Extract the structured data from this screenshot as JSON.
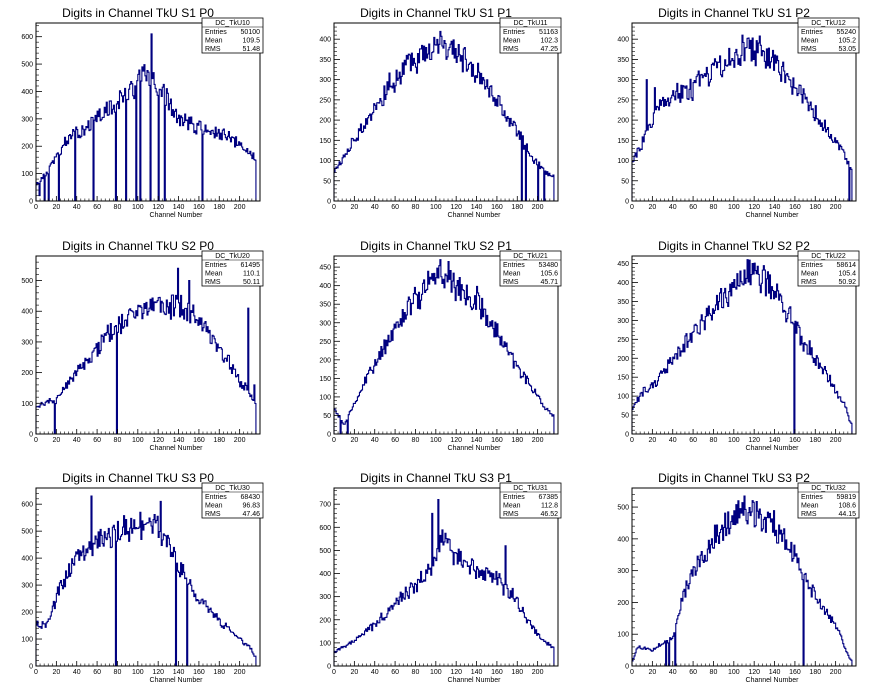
{
  "chart_data": [
    {
      "type": "histogram",
      "title": "Digits in Channel TkU S1 P0",
      "xlabel": "Channel Number",
      "xlim": [
        0,
        220
      ],
      "ylim": [
        0,
        650
      ],
      "yticks": [
        0,
        100,
        200,
        300,
        400,
        500,
        600
      ],
      "stats": {
        "name": "DC_TkU10",
        "entries": "50100",
        "mean": "109.5",
        "rms": "51.48"
      },
      "profile": [
        [
          0,
          60
        ],
        [
          10,
          100
        ],
        [
          30,
          220
        ],
        [
          60,
          300
        ],
        [
          90,
          390
        ],
        [
          105,
          460
        ],
        [
          120,
          420
        ],
        [
          140,
          300
        ],
        [
          160,
          270
        ],
        [
          190,
          230
        ],
        [
          216,
          160
        ]
      ],
      "dips": [
        [
          3,
          20
        ],
        [
          8,
          0
        ],
        [
          12,
          0
        ],
        [
          22,
          0
        ],
        [
          38,
          0
        ],
        [
          42,
          0
        ],
        [
          56,
          0
        ],
        [
          78,
          0
        ],
        [
          88,
          0
        ],
        [
          98,
          0
        ],
        [
          102,
          0
        ],
        [
          112,
          0
        ],
        [
          120,
          0
        ],
        [
          126,
          0
        ],
        [
          163,
          0
        ]
      ],
      "spikes": [
        [
          113,
          610
        ],
        [
          128,
          410
        ],
        [
          42,
          240
        ]
      ]
    },
    {
      "type": "histogram",
      "title": "Digits in Channel TkU S1 P1",
      "xlabel": "Channel Number",
      "xlim": [
        0,
        220
      ],
      "ylim": [
        0,
        440
      ],
      "yticks": [
        0,
        50,
        100,
        150,
        200,
        250,
        300,
        350,
        400
      ],
      "stats": {
        "name": "DC_TkU11",
        "entries": "51163",
        "mean": "102.3",
        "rms": "47.25"
      },
      "profile": [
        [
          0,
          70
        ],
        [
          10,
          110
        ],
        [
          30,
          190
        ],
        [
          50,
          270
        ],
        [
          70,
          330
        ],
        [
          90,
          375
        ],
        [
          105,
          395
        ],
        [
          120,
          370
        ],
        [
          140,
          320
        ],
        [
          160,
          250
        ],
        [
          180,
          170
        ],
        [
          196,
          100
        ],
        [
          214,
          60
        ]
      ],
      "dips": [
        [
          184,
          0
        ],
        [
          188,
          0
        ],
        [
          200,
          0
        ],
        [
          206,
          0
        ]
      ],
      "spikes": []
    },
    {
      "type": "histogram",
      "title": "Digits in Channel TkU S1 P2",
      "xlabel": "Channel Number",
      "xlim": [
        0,
        220
      ],
      "ylim": [
        0,
        440
      ],
      "yticks": [
        0,
        50,
        100,
        150,
        200,
        250,
        300,
        350,
        400
      ],
      "stats": {
        "name": "DC_TkU12",
        "entries": "55240",
        "mean": "105.2",
        "rms": "53.05"
      },
      "profile": [
        [
          0,
          100
        ],
        [
          10,
          140
        ],
        [
          25,
          230
        ],
        [
          40,
          260
        ],
        [
          60,
          280
        ],
        [
          80,
          320
        ],
        [
          100,
          355
        ],
        [
          115,
          375
        ],
        [
          130,
          370
        ],
        [
          150,
          320
        ],
        [
          170,
          250
        ],
        [
          190,
          180
        ],
        [
          210,
          110
        ],
        [
          214,
          80
        ]
      ],
      "dips": [
        [
          213,
          0
        ]
      ],
      "spikes": [
        [
          108,
          410
        ],
        [
          14,
          300
        ],
        [
          22,
          280
        ]
      ]
    },
    {
      "type": "histogram",
      "title": "Digits in Channel TkU S2 P0",
      "xlabel": "Channel Number",
      "xlim": [
        0,
        220
      ],
      "ylim": [
        0,
        580
      ],
      "yticks": [
        0,
        100,
        200,
        300,
        400,
        500
      ],
      "stats": {
        "name": "DC_TkU20",
        "entries": "61495",
        "mean": "110.1",
        "rms": "50.11"
      },
      "profile": [
        [
          0,
          90
        ],
        [
          20,
          110
        ],
        [
          40,
          200
        ],
        [
          60,
          280
        ],
        [
          80,
          360
        ],
        [
          100,
          400
        ],
        [
          120,
          420
        ],
        [
          140,
          420
        ],
        [
          160,
          370
        ],
        [
          180,
          290
        ],
        [
          200,
          170
        ],
        [
          216,
          110
        ]
      ],
      "dips": [
        [
          18,
          0
        ],
        [
          79,
          0
        ]
      ],
      "spikes": [
        [
          139,
          540
        ],
        [
          150,
          500
        ],
        [
          208,
          410
        ],
        [
          214,
          160
        ]
      ]
    },
    {
      "type": "histogram",
      "title": "Digits in Channel TkU S2 P1",
      "xlabel": "Channel Number",
      "xlim": [
        0,
        220
      ],
      "ylim": [
        0,
        480
      ],
      "yticks": [
        0,
        50,
        100,
        150,
        200,
        250,
        300,
        350,
        400,
        450
      ],
      "stats": {
        "name": "DC_TkU21",
        "entries": "53480",
        "mean": "105.6",
        "rms": "45.71"
      },
      "profile": [
        [
          0,
          70
        ],
        [
          10,
          25
        ],
        [
          20,
          80
        ],
        [
          30,
          140
        ],
        [
          50,
          240
        ],
        [
          70,
          330
        ],
        [
          90,
          400
        ],
        [
          105,
          440
        ],
        [
          120,
          400
        ],
        [
          140,
          360
        ],
        [
          160,
          280
        ],
        [
          180,
          180
        ],
        [
          200,
          100
        ],
        [
          214,
          50
        ]
      ],
      "dips": [
        [
          6,
          0
        ],
        [
          13,
          0
        ]
      ],
      "spikes": [
        [
          104,
          470
        ]
      ]
    },
    {
      "type": "histogram",
      "title": "Digits in Channel TkU S2 P2",
      "xlabel": "Channel Number",
      "xlim": [
        0,
        220
      ],
      "ylim": [
        0,
        470
      ],
      "yticks": [
        0,
        50,
        100,
        150,
        200,
        250,
        300,
        350,
        400,
        450
      ],
      "stats": {
        "name": "DC_TkU22",
        "entries": "58614",
        "mean": "105.4",
        "rms": "50.92"
      },
      "profile": [
        [
          0,
          60
        ],
        [
          10,
          110
        ],
        [
          25,
          140
        ],
        [
          40,
          200
        ],
        [
          60,
          260
        ],
        [
          80,
          330
        ],
        [
          100,
          390
        ],
        [
          115,
          430
        ],
        [
          130,
          410
        ],
        [
          150,
          330
        ],
        [
          170,
          240
        ],
        [
          190,
          160
        ],
        [
          210,
          70
        ],
        [
          214,
          30
        ]
      ],
      "dips": [
        [
          159,
          0
        ]
      ],
      "spikes": [
        [
          118,
          450
        ]
      ]
    },
    {
      "type": "histogram",
      "title": "Digits in Channel TkU S3 P0",
      "xlabel": "Channel Number",
      "xlim": [
        0,
        220
      ],
      "ylim": [
        0,
        660
      ],
      "yticks": [
        0,
        100,
        200,
        300,
        400,
        500,
        600
      ],
      "stats": {
        "name": "DC_TkU30",
        "entries": "68430",
        "mean": "96.83",
        "rms": "47.46"
      },
      "profile": [
        [
          0,
          150
        ],
        [
          10,
          150
        ],
        [
          25,
          300
        ],
        [
          40,
          400
        ],
        [
          60,
          460
        ],
        [
          80,
          500
        ],
        [
          100,
          520
        ],
        [
          115,
          530
        ],
        [
          130,
          450
        ],
        [
          150,
          300
        ],
        [
          170,
          210
        ],
        [
          190,
          130
        ],
        [
          210,
          70
        ],
        [
          216,
          30
        ]
      ],
      "dips": [
        [
          78,
          0
        ],
        [
          137,
          0
        ],
        [
          148,
          0
        ]
      ],
      "spikes": [
        [
          54,
          630
        ],
        [
          122,
          610
        ],
        [
          102,
          570
        ]
      ]
    },
    {
      "type": "histogram",
      "title": "Digits in Channel TkU S3 P1",
      "xlabel": "Channel Number",
      "xlim": [
        0,
        220
      ],
      "ylim": [
        0,
        770
      ],
      "yticks": [
        0,
        100,
        200,
        300,
        400,
        500,
        600,
        700
      ],
      "stats": {
        "name": "DC_TkU31",
        "entries": "67385",
        "mean": "112.8",
        "rms": "46.52"
      },
      "profile": [
        [
          0,
          60
        ],
        [
          20,
          110
        ],
        [
          40,
          180
        ],
        [
          60,
          270
        ],
        [
          80,
          350
        ],
        [
          95,
          420
        ],
        [
          105,
          560
        ],
        [
          120,
          480
        ],
        [
          140,
          420
        ],
        [
          160,
          370
        ],
        [
          175,
          310
        ],
        [
          190,
          200
        ],
        [
          205,
          110
        ],
        [
          216,
          80
        ]
      ],
      "dips": [],
      "spikes": [
        [
          102,
          720
        ],
        [
          96,
          660
        ],
        [
          168,
          520
        ]
      ]
    },
    {
      "type": "histogram",
      "title": "Digits in Channel TkU S3 P2",
      "xlabel": "Channel Number",
      "xlim": [
        0,
        220
      ],
      "ylim": [
        0,
        560
      ],
      "yticks": [
        0,
        100,
        200,
        300,
        400,
        500
      ],
      "stats": {
        "name": "DC_TkU32",
        "entries": "59819",
        "mean": "108.6",
        "rms": "44.15"
      },
      "profile": [
        [
          0,
          10
        ],
        [
          5,
          60
        ],
        [
          20,
          50
        ],
        [
          40,
          90
        ],
        [
          50,
          220
        ],
        [
          70,
          350
        ],
        [
          90,
          440
        ],
        [
          110,
          500
        ],
        [
          125,
          480
        ],
        [
          140,
          440
        ],
        [
          160,
          350
        ],
        [
          180,
          220
        ],
        [
          200,
          130
        ],
        [
          214,
          20
        ]
      ],
      "dips": [
        [
          33,
          0
        ],
        [
          36,
          0
        ],
        [
          42,
          0
        ],
        [
          168,
          0
        ]
      ],
      "spikes": [
        [
          118,
          520
        ]
      ]
    }
  ],
  "stat_labels": {
    "entries": "Entries",
    "mean": "Mean",
    "rms": "RMS"
  },
  "colors": {
    "line": "#000080",
    "axes": "#000000",
    "background": "#ffffff"
  }
}
